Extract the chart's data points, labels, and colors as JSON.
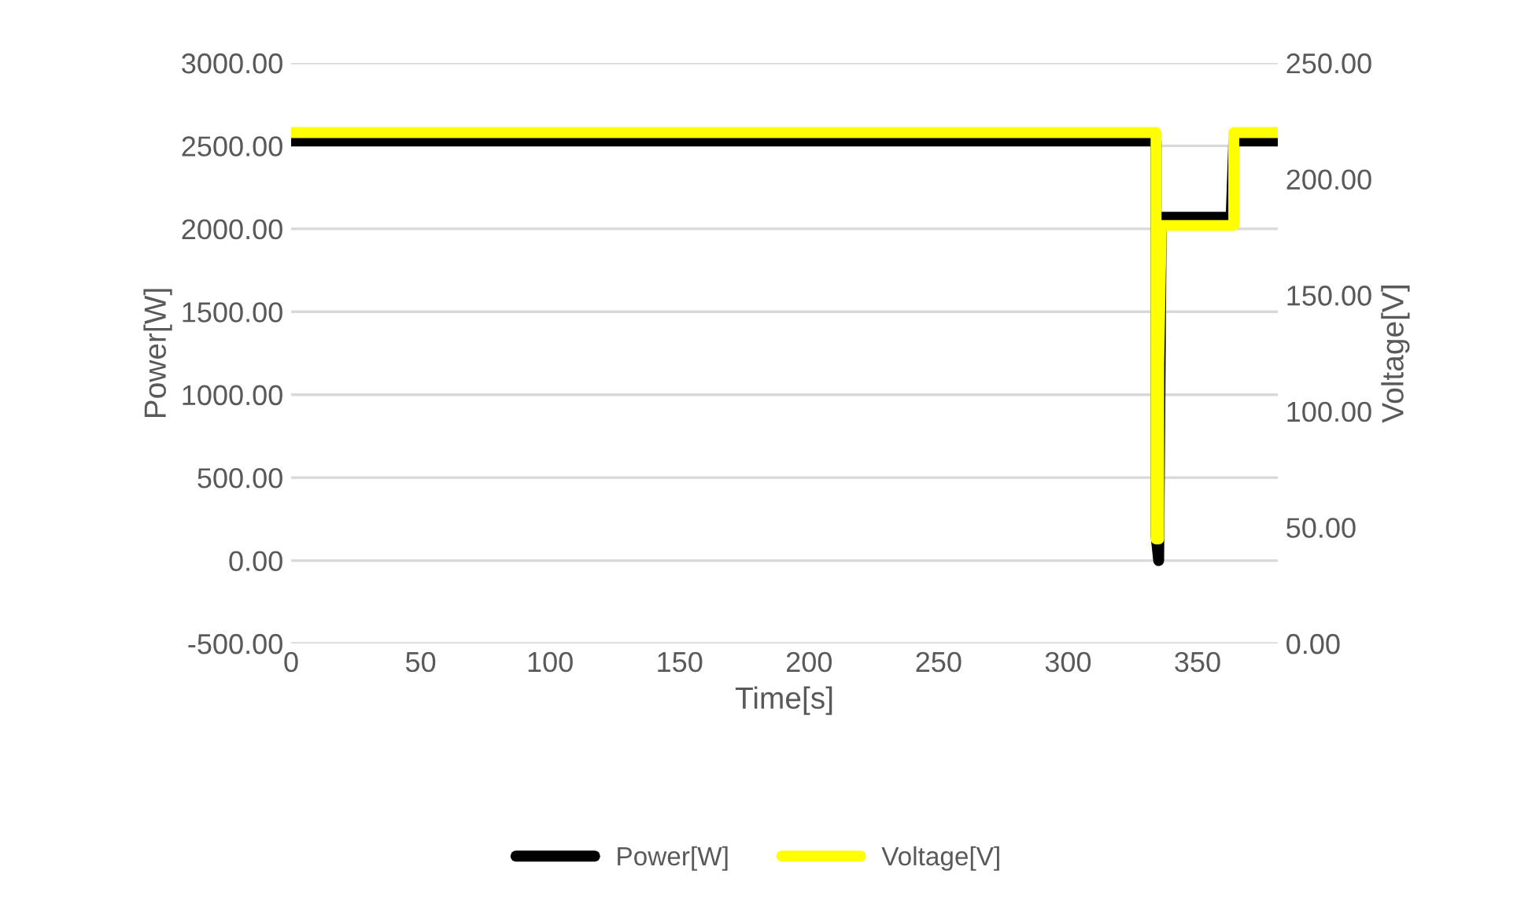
{
  "chart_data": {
    "type": "line",
    "xlabel": "Time[s]",
    "ylabel": "Power[W]",
    "y2label": "Voltage[V]",
    "xlim": [
      0,
      381
    ],
    "xticks": [
      0,
      50,
      100,
      150,
      200,
      250,
      300,
      350
    ],
    "ylim": [
      -500,
      3000
    ],
    "yticks": [
      {
        "value": -500,
        "label": "-500.00"
      },
      {
        "value": 0,
        "label": "0.00"
      },
      {
        "value": 500,
        "label": "500.00"
      },
      {
        "value": 1000,
        "label": "1000.00"
      },
      {
        "value": 1500,
        "label": "1500.00"
      },
      {
        "value": 2000,
        "label": "2000.00"
      },
      {
        "value": 2500,
        "label": "2500.00"
      },
      {
        "value": 3000,
        "label": "3000.00"
      }
    ],
    "y2lim": [
      0,
      250
    ],
    "y2ticks": [
      {
        "value": 0,
        "label": "0.00"
      },
      {
        "value": 50,
        "label": "50.00"
      },
      {
        "value": 100,
        "label": "100.00"
      },
      {
        "value": 150,
        "label": "150.00"
      },
      {
        "value": 200,
        "label": "200.00"
      },
      {
        "value": 250,
        "label": "250.00"
      }
    ],
    "grid": "y",
    "legend": "bottom",
    "marker": "none",
    "line_style": "solid",
    "series": [
      {
        "name": "Power[W]",
        "color": "#000000",
        "x": [
          0,
          334,
          334,
          335,
          336,
          363,
          364,
          381
        ],
        "values": [
          2530,
          2530,
          150,
          0,
          2070,
          2070,
          2530,
          2530
        ]
      },
      {
        "name": "Voltage[V]",
        "color": "#ffff00",
        "axis": "y2",
        "x": [
          0,
          334,
          334,
          335,
          335,
          336,
          364,
          364,
          381
        ],
        "values": [
          220,
          220,
          45,
          45,
          120,
          180,
          180,
          220,
          220
        ]
      }
    ]
  }
}
